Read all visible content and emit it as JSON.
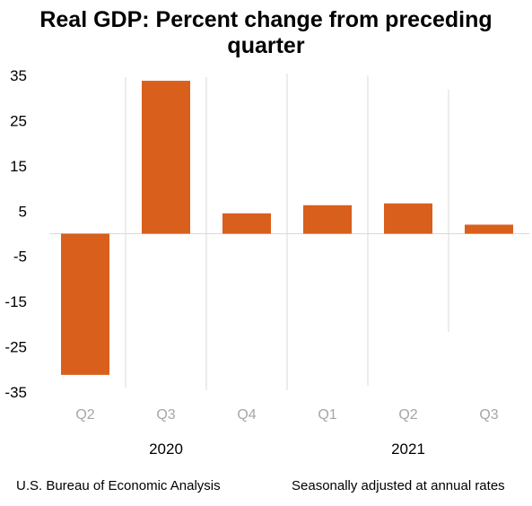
{
  "chart_data": {
    "type": "bar",
    "title": "Real GDP:  Percent change from preceding quarter",
    "categories": [
      "Q2",
      "Q3",
      "Q4",
      "Q1",
      "Q2",
      "Q3"
    ],
    "years": [
      {
        "label": "2020",
        "quarters": [
          "Q2",
          "Q3",
          "Q4"
        ]
      },
      {
        "label": "2021",
        "quarters": [
          "Q1",
          "Q2",
          "Q3"
        ]
      }
    ],
    "series": [
      {
        "values": [
          -31.2,
          33.8,
          4.5,
          6.3,
          6.7,
          2.0
        ],
        "color": "#d95f1c"
      }
    ],
    "yticks": [
      35,
      25,
      15,
      5,
      -5,
      -15,
      -25,
      -35
    ],
    "ylim": [
      -35,
      35
    ],
    "grid": false,
    "xlabel": "",
    "ylabel": ""
  },
  "footer": {
    "source": "U.S. Bureau of Economic Analysis",
    "note": "Seasonally adjusted at annual rates"
  }
}
